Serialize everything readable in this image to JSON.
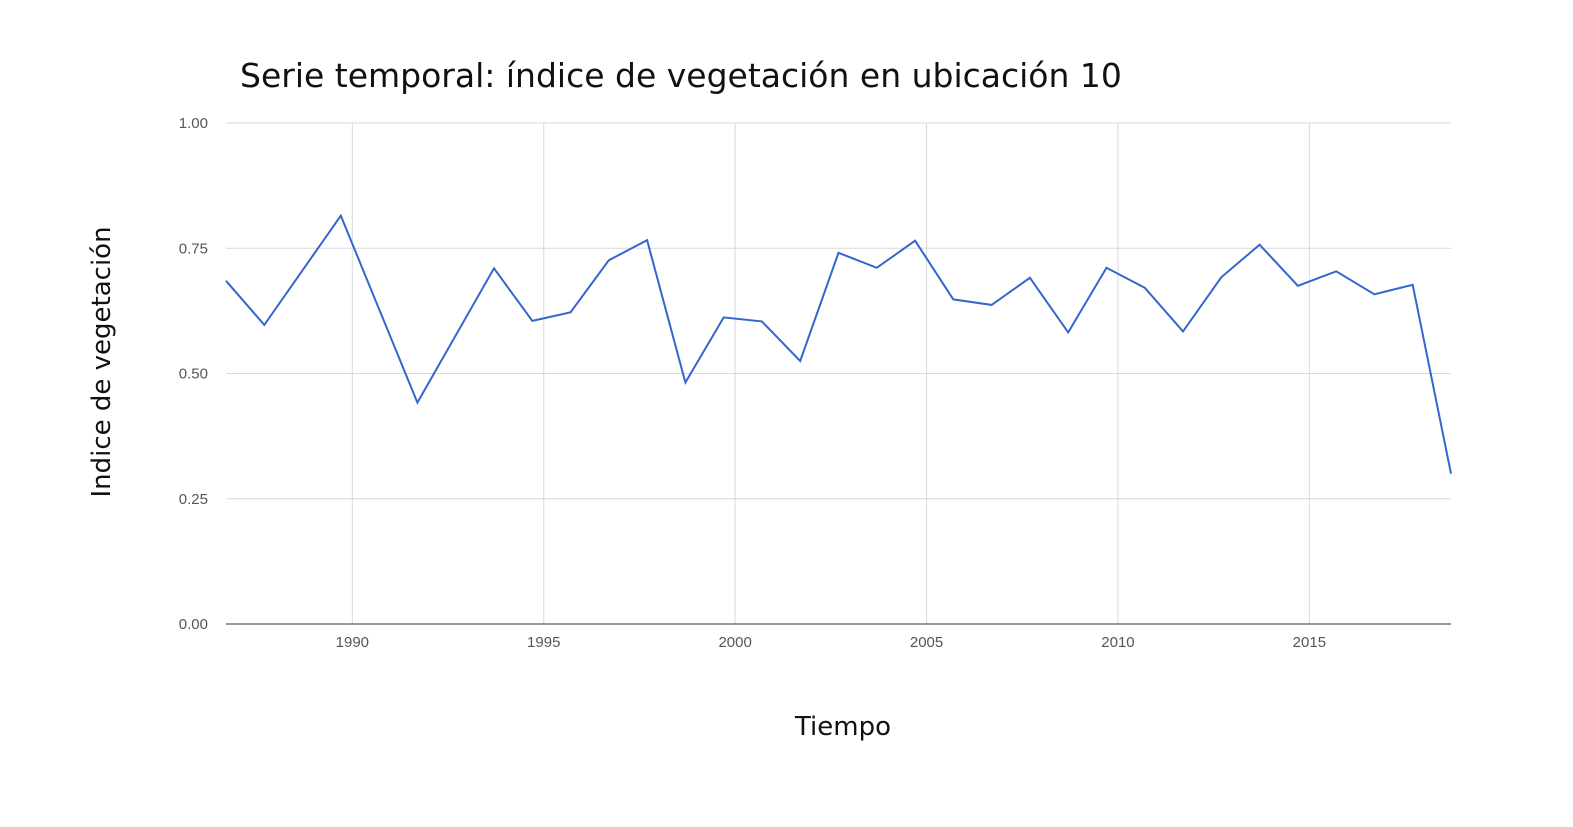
{
  "chart_data": {
    "type": "line",
    "title": "Serie temporal: índice de vegetación en ubicación 10",
    "xlabel": "Tiempo",
    "ylabel": "Indice de vegetación",
    "xlim": [
      1986.7,
      2018.7
    ],
    "ylim": [
      0,
      1
    ],
    "xticks": [
      1990,
      1995,
      2000,
      2005,
      2010,
      2015
    ],
    "yticks": [
      0,
      0.25,
      0.5,
      0.75,
      1
    ],
    "ytick_labels": [
      "0.00",
      "0.25",
      "0.50",
      "0.75",
      "1.00"
    ],
    "grid": true,
    "line_color": "#3366cc",
    "series": [
      {
        "x": [
          1986.7,
          1987.7,
          1989.7,
          1991.7,
          1993.7,
          1994.7,
          1995.7,
          1996.7,
          1997.7,
          1998.7,
          1999.7,
          2000.7,
          2001.7,
          2002.7,
          2003.7,
          2004.7,
          2005.7,
          2006.7,
          2007.7,
          2008.7,
          2009.7,
          2010.7,
          2011.7,
          2012.7,
          2013.7,
          2014.7,
          2015.7,
          2016.7,
          2017.7,
          2018.7
        ],
        "values": [
          0.685,
          0.597,
          0.815,
          0.442,
          0.71,
          0.605,
          0.622,
          0.726,
          0.766,
          0.482,
          0.612,
          0.604,
          0.525,
          0.741,
          0.711,
          0.765,
          0.648,
          0.637,
          0.691,
          0.582,
          0.711,
          0.671,
          0.584,
          0.692,
          0.757,
          0.675,
          0.704,
          0.658,
          0.677,
          0.3
        ]
      }
    ]
  }
}
